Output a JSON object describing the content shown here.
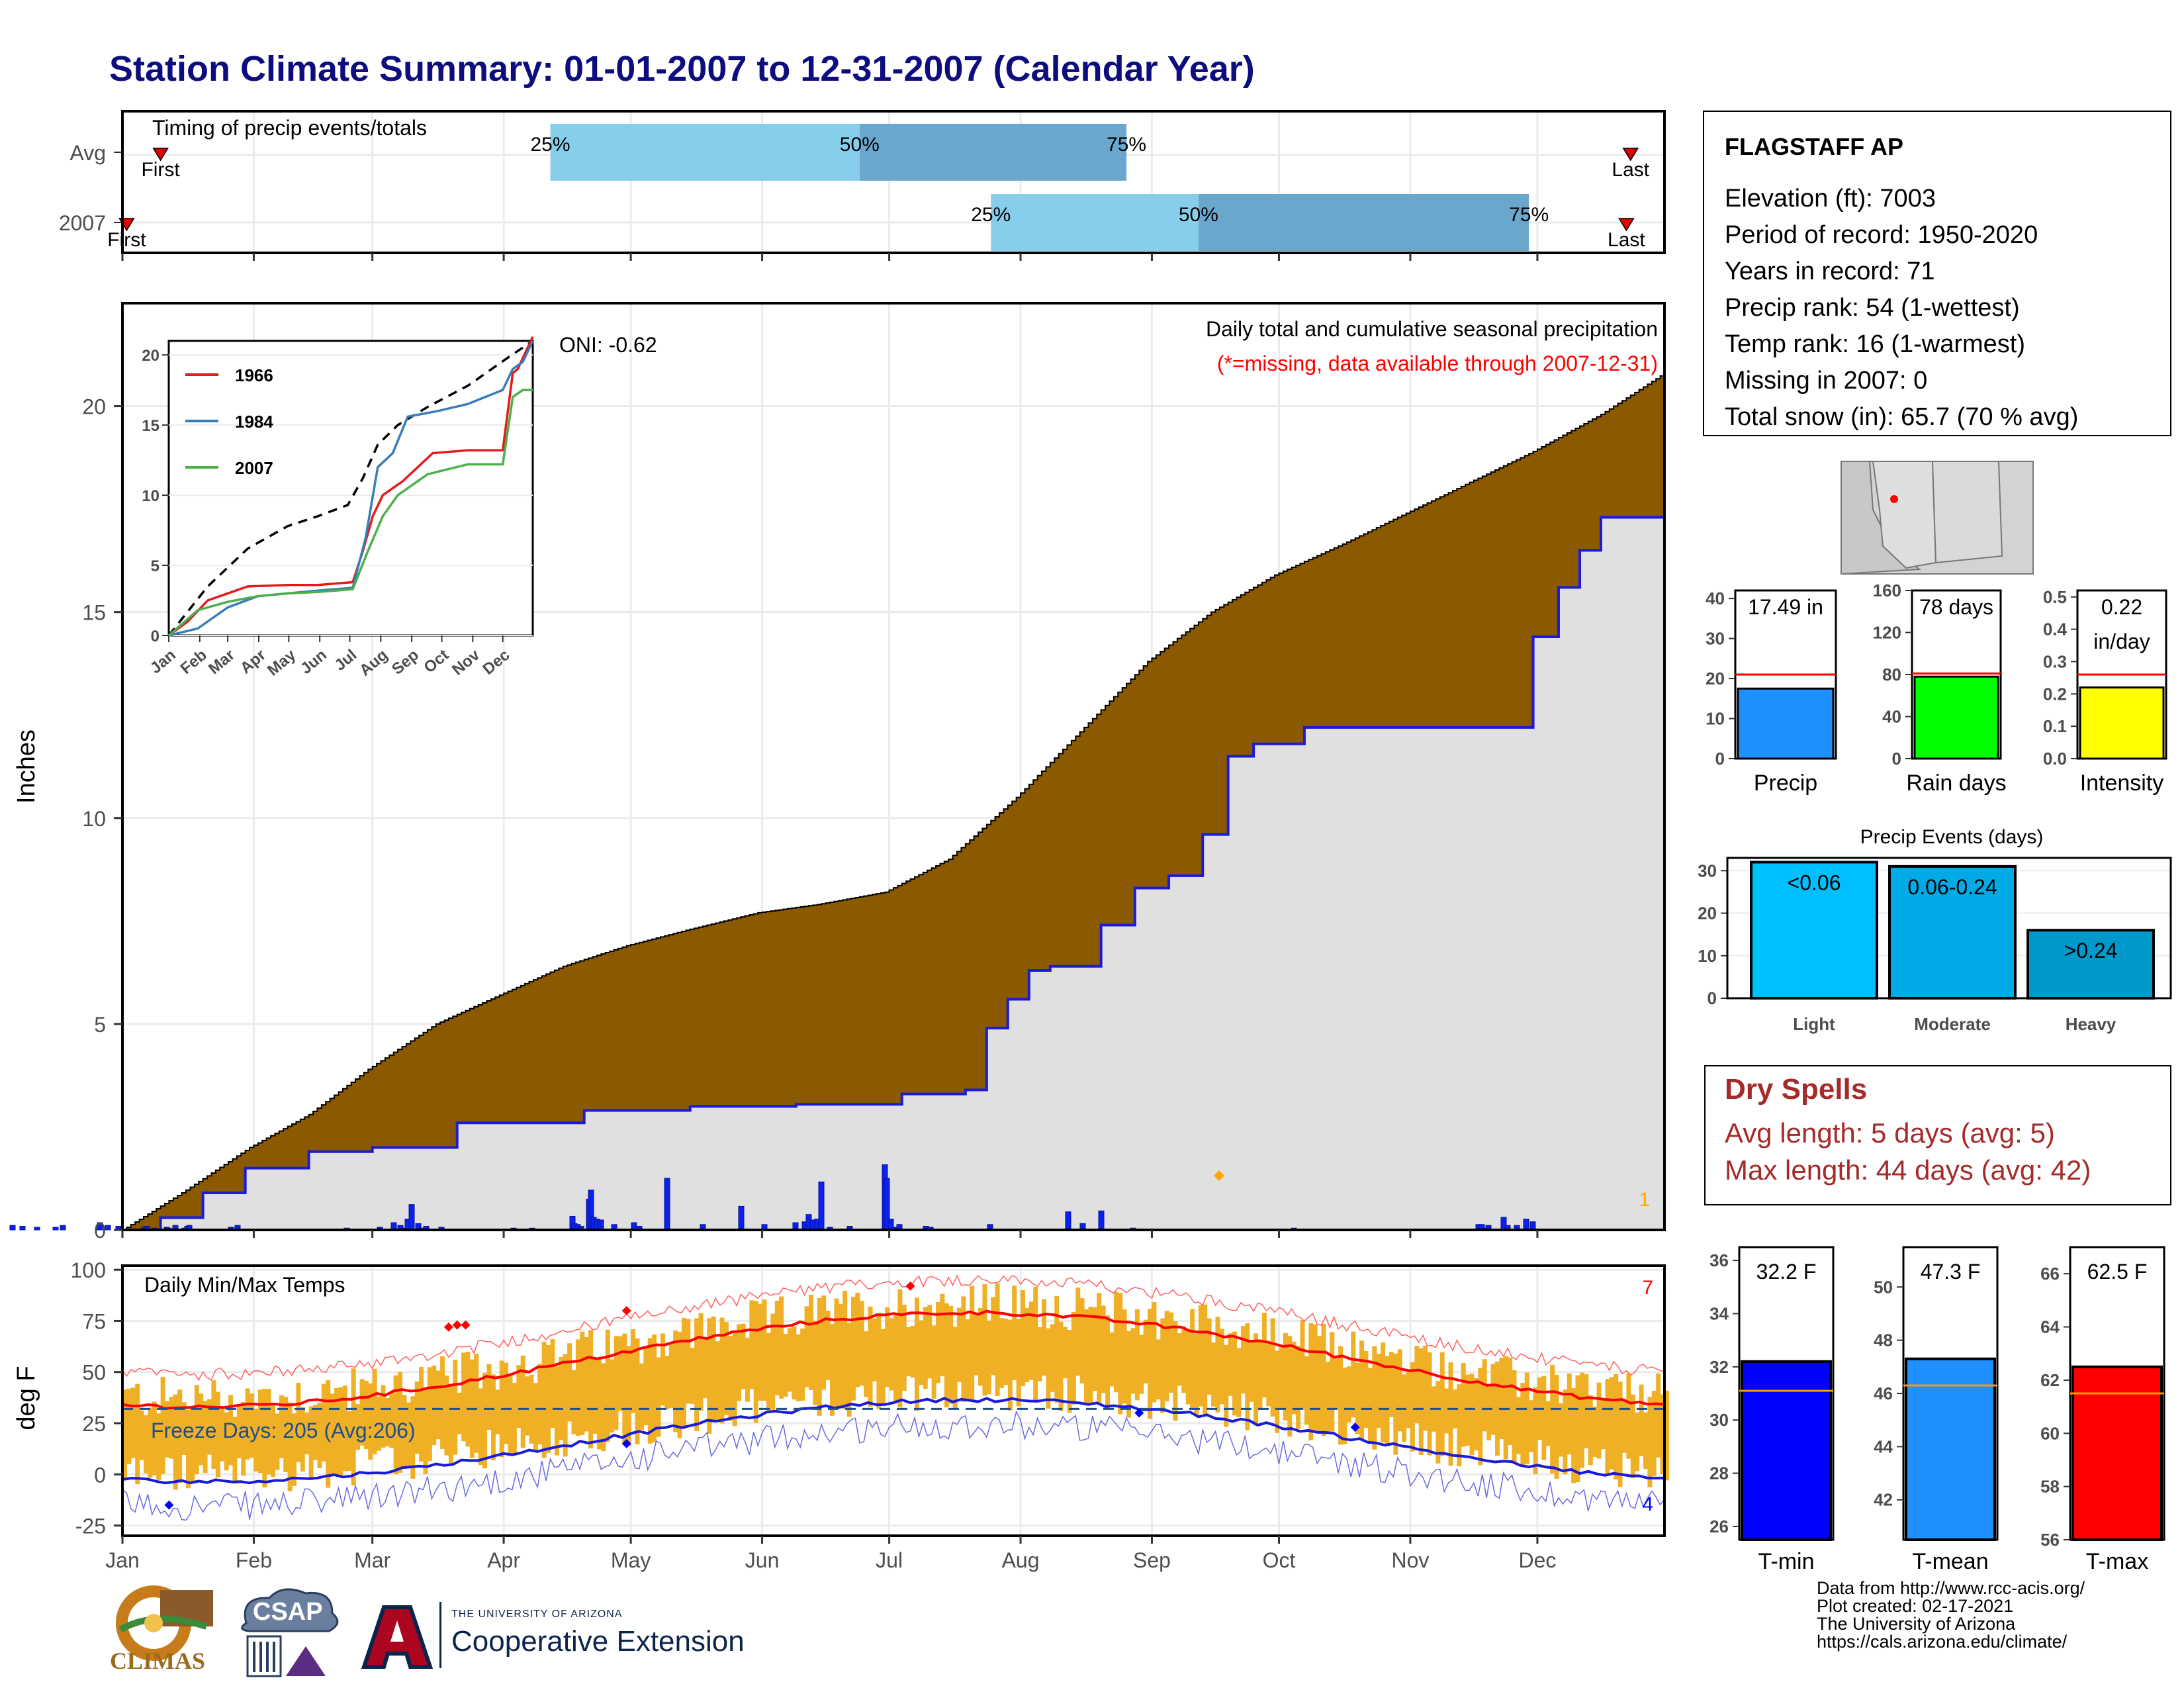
{
  "title": "Station Climate Summary: 01-01-2007 to 12-31-2007 (Calendar Year)",
  "colors": {
    "title": "#0d0d80",
    "cum_fill": "#8b5a00",
    "avg_fill": "#e0e0e0",
    "avg_line": "#1a1ad9",
    "bar_light": "#87ceeb",
    "bar_dark": "#6ba6cc",
    "temp_range": "#f0b025",
    "tmax_avg": "#ff0000",
    "tmin_avg": "#1a1ad9",
    "red_text": "#ff0000",
    "dry_text": "#a52a2a",
    "precip_bar": "#1e90ff",
    "raindays_bar": "#00ff00",
    "intensity_bar": "#ffff00",
    "tmin_bar": "#0000ff",
    "tmean_bar": "#1e90ff",
    "tmax_bar": "#ff0000",
    "light_bar": "#00bfff",
    "moderate_bar": "#00aae6",
    "heavy_bar": "#0099cc",
    "orange_line": "#ff9900"
  },
  "timing": {
    "title": "Timing of precip events/totals",
    "rows": [
      {
        "label": "Avg",
        "first": "First",
        "last": "Last",
        "p25": "25%",
        "p50": "50%",
        "p75": "75%",
        "first_doy": 10,
        "p25_doy": 102,
        "p50_doy": 175,
        "p75_doy": 238,
        "last_doy": 357
      },
      {
        "label": "2007",
        "first": "First",
        "last": "Last",
        "p25": "25%",
        "p50": "50%",
        "p75": "75%",
        "first_doy": 2,
        "p25_doy": 206,
        "p50_doy": 255,
        "p75_doy": 333,
        "last_doy": 356
      }
    ]
  },
  "main_chart": {
    "ylabel": "Inches",
    "subtitle": "Daily total and cumulative seasonal precipitation",
    "missing_note": "(*=missing, data available through 2007-12-31)",
    "oni": "ONI: -0.62",
    "count_label": "1",
    "yticks": [
      0,
      5,
      10,
      15,
      20
    ],
    "ylim": [
      0,
      22.5
    ]
  },
  "inset": {
    "yticks": [
      0,
      5,
      10,
      15,
      20
    ],
    "months": [
      "Jan",
      "Feb",
      "Mar",
      "Apr",
      "May",
      "Jun",
      "Jul",
      "Aug",
      "Sep",
      "Oct",
      "Nov",
      "Dec"
    ],
    "legend": [
      {
        "name": "1966",
        "color": "#e41a1c"
      },
      {
        "name": "1984",
        "color": "#377eb8"
      },
      {
        "name": "2007",
        "color": "#4daf4a"
      }
    ]
  },
  "temp_chart": {
    "ylabel": "deg F",
    "title": "Daily Min/Max Temps",
    "freeze": "Freeze Days: 205 (Avg:206)",
    "hot_count": "7",
    "cold_count": "4",
    "yticks": [
      -25,
      0,
      25,
      50,
      75,
      100
    ],
    "ylim": [
      -30,
      102
    ]
  },
  "months": [
    "Jan",
    "Feb",
    "Mar",
    "Apr",
    "May",
    "Jun",
    "Jul",
    "Aug",
    "Sep",
    "Oct",
    "Nov",
    "Dec"
  ],
  "station": {
    "name": "FLAGSTAFF AP",
    "lines": [
      "Elevation (ft): 7003",
      "Period of record: 1950-2020",
      "Years in record: 71",
      "Precip rank: 54 (1-wettest)",
      "Temp rank: 16 (1-warmest)",
      "Missing in 2007: 0",
      "Total snow (in): 65.7 (70 % avg)"
    ]
  },
  "small_bars": [
    {
      "label": "Precip",
      "value_text": "17.49 in",
      "value": 17.49,
      "avg": 21,
      "ylim": [
        0,
        42
      ],
      "yticks": [
        0,
        10,
        20,
        30,
        40
      ],
      "color": "#1e90ff"
    },
    {
      "label": "Rain days",
      "value_text": "78 days",
      "value": 78,
      "avg": 81,
      "ylim": [
        0,
        160
      ],
      "yticks": [
        0,
        40,
        80,
        120,
        160
      ],
      "color": "#00ff00"
    },
    {
      "label": "Intensity",
      "value_text": "0.22",
      "value_text2": "in/day",
      "value": 0.22,
      "avg": 0.26,
      "ylim": [
        0,
        0.52
      ],
      "yticks": [
        0.0,
        0.1,
        0.2,
        0.3,
        0.4,
        0.5
      ],
      "color": "#ffff00"
    }
  ],
  "precip_events": {
    "title": "Precip Events (days)",
    "categories": [
      "Light",
      "Moderate",
      "Heavy"
    ],
    "labels": [
      "<0.06",
      "0.06-0.24",
      ">0.24"
    ],
    "values": [
      32,
      31,
      16
    ],
    "yticks": [
      0,
      10,
      20,
      30
    ],
    "ylim": [
      0,
      33
    ]
  },
  "dry_spells": {
    "title": "Dry Spells",
    "avg": "Avg length: 5 days (avg: 5)",
    "max": "Max length: 44 days (avg: 42)"
  },
  "temp_bars": [
    {
      "label": "T-min",
      "value_text": "32.2 F",
      "value": 32.2,
      "avg": 31.1,
      "ylim": [
        25.5,
        36.5
      ],
      "yticks": [
        26,
        28,
        30,
        32,
        34,
        36
      ],
      "color": "#0000ff"
    },
    {
      "label": "T-mean",
      "value_text": "47.3 F",
      "value": 47.3,
      "avg": 46.3,
      "ylim": [
        40.5,
        51.5
      ],
      "yticks": [
        42,
        44,
        46,
        48,
        50
      ],
      "color": "#1e90ff"
    },
    {
      "label": "T-max",
      "value_text": "62.5 F",
      "value": 62.5,
      "avg": 61.5,
      "ylim": [
        56,
        67
      ],
      "yticks": [
        56,
        58,
        60,
        62,
        64,
        66
      ],
      "color": "#ff0000"
    }
  ],
  "credits": [
    "Data from http://www.rcc-acis.org/",
    "Plot created: 02-17-2021",
    "The University of Arizona",
    "https://cals.arizona.edu/climate/"
  ],
  "logos": {
    "climas": "CLIMAS",
    "csap": "CSAP",
    "ua_line1": "THE UNIVERSITY OF ARIZONA",
    "ua_line2": "Cooperative Extension"
  },
  "chart_data": {
    "type": "area",
    "title": "Station Climate Summary: 01-01-2007 to 12-31-2007 (Calendar Year)",
    "ylabel": "Inches",
    "ylim": [
      0,
      22.5
    ],
    "x_unit": "day of year",
    "series": [
      {
        "name": "",
        "x": [
          1,
          15,
          31,
          45,
          59,
          75,
          90,
          105,
          120,
          135,
          151,
          165,
          181,
          196,
          212,
          228,
          243,
          258,
          273,
          290,
          304,
          320,
          334,
          350,
          365
        ],
        "values": [
          0,
          0.9,
          2.0,
          2.8,
          3.9,
          5.0,
          5.7,
          6.4,
          6.9,
          7.3,
          7.7,
          7.9,
          8.2,
          9.0,
          10.5,
          12.2,
          13.8,
          15.0,
          15.9,
          16.7,
          17.4,
          18.2,
          18.9,
          19.8,
          20.8
        ]
      },
      {
        "name": "",
        "x": [
          1,
          10,
          20,
          30,
          45,
          60,
          80,
          110,
          135,
          160,
          185,
          200,
          205,
          210,
          215,
          220,
          232,
          240,
          248,
          256,
          262,
          268,
          280,
          300,
          330,
          334,
          340,
          345,
          350,
          365
        ],
        "values": [
          0,
          0.3,
          0.9,
          1.5,
          1.9,
          2.0,
          2.6,
          2.9,
          3.0,
          3.05,
          3.3,
          3.4,
          4.9,
          5.6,
          6.3,
          6.4,
          7.4,
          8.3,
          8.6,
          9.6,
          11.5,
          11.8,
          12.2,
          12.2,
          12.2,
          14.4,
          15.6,
          16.5,
          17.3,
          17.5
        ]
      }
    ]
  }
}
